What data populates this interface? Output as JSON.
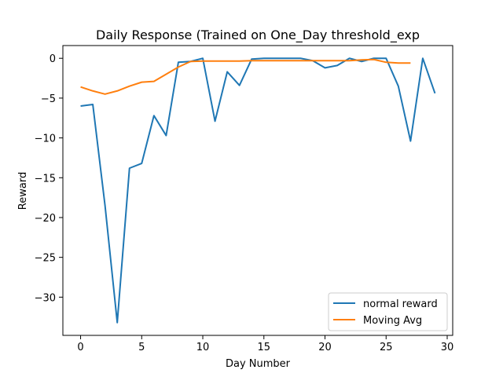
{
  "chart_data": {
    "type": "line",
    "title": "Daily Response (Trained on One_Day threshold_exp",
    "xlabel": "Day Number",
    "ylabel": "Reward",
    "xlim": [
      -1.45,
      30.45
    ],
    "ylim": [
      -34.8,
      1.6
    ],
    "xticks": [
      0,
      5,
      10,
      15,
      20,
      25,
      30
    ],
    "yticks": [
      0,
      -5,
      -10,
      -15,
      -20,
      -25,
      -30
    ],
    "grid": false,
    "legend": "bottom-right",
    "series": [
      {
        "name": "normal reward",
        "color": "#1f77b4",
        "x": [
          0,
          1,
          2,
          3,
          4,
          5,
          6,
          7,
          8,
          9,
          10,
          11,
          12,
          13,
          14,
          15,
          16,
          17,
          18,
          19,
          20,
          21,
          22,
          23,
          24,
          25,
          26,
          27,
          28,
          29
        ],
        "y": [
          -6.0,
          -5.8,
          -18.5,
          -33.2,
          -13.8,
          -13.2,
          -7.2,
          -9.7,
          -0.5,
          -0.4,
          0.0,
          -7.9,
          -1.7,
          -3.4,
          -0.1,
          0.0,
          0.0,
          0.0,
          0.0,
          -0.3,
          -1.2,
          -0.9,
          0.0,
          -0.4,
          0.0,
          0.0,
          -3.5,
          -10.4,
          0.0,
          -4.4
        ]
      },
      {
        "name": "Moving Avg",
        "color": "#ff7f0e",
        "x": [
          0,
          1,
          2,
          3,
          4,
          5,
          6,
          7,
          8,
          9,
          10,
          11,
          12,
          13,
          14,
          15,
          16,
          17,
          18,
          19,
          20,
          21,
          22,
          23,
          24,
          25,
          26,
          27
        ],
        "y": [
          -3.6,
          -4.1,
          -4.5,
          -4.1,
          -3.5,
          -3.0,
          -2.9,
          -2.0,
          -1.1,
          -0.4,
          -0.35,
          -0.35,
          -0.35,
          -0.35,
          -0.3,
          -0.3,
          -0.3,
          -0.3,
          -0.3,
          -0.3,
          -0.3,
          -0.3,
          -0.3,
          -0.2,
          -0.15,
          -0.5,
          -0.6,
          -0.6
        ]
      }
    ]
  }
}
